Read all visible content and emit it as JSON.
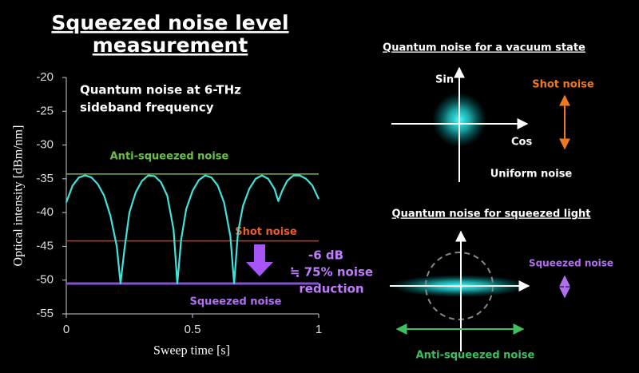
{
  "chart_data": {
    "type": "line",
    "title_lines": [
      "Squeezed  noise level",
      "measurement"
    ],
    "x_label": "Sweep time [s]",
    "y_label": "Optical intensity [dBm/nm]",
    "xlim": [
      0,
      1
    ],
    "xticks": [
      0,
      0.5,
      1
    ],
    "ylim": [
      -55,
      -20
    ],
    "yticks": [
      -20,
      -25,
      -30,
      -35,
      -40,
      -45,
      -50,
      -55
    ],
    "series": [
      {
        "color": "#3fe3dc",
        "x": [
          0,
          0.025,
          0.05,
          0.075,
          0.1,
          0.125,
          0.15,
          0.175,
          0.2,
          0.215,
          0.23,
          0.25,
          0.275,
          0.3,
          0.325,
          0.35,
          0.375,
          0.4,
          0.425,
          0.44,
          0.455,
          0.475,
          0.5,
          0.525,
          0.55,
          0.575,
          0.6,
          0.625,
          0.65,
          0.665,
          0.68,
          0.7,
          0.725,
          0.75,
          0.775,
          0.8,
          0.825,
          0.84,
          0.855,
          0.875,
          0.9,
          0.925,
          0.95,
          0.975,
          1
        ],
        "values": [
          -38.5,
          -36,
          -34.8,
          -34.5,
          -34.8,
          -35.8,
          -37.5,
          -40.5,
          -45,
          -50.5,
          -45.5,
          -40,
          -37,
          -35.3,
          -34.5,
          -34.6,
          -35.5,
          -37.5,
          -42.5,
          -50.5,
          -44,
          -39.5,
          -36.8,
          -35.2,
          -34.5,
          -34.8,
          -36,
          -38.5,
          -43.5,
          -50.5,
          -43,
          -39,
          -36.5,
          -35,
          -34.5,
          -35,
          -36.5,
          -38.3,
          -36.8,
          -35.3,
          -34.5,
          -34.5,
          -35,
          -36,
          -38
        ]
      }
    ],
    "reference_lines": [
      {
        "name": "Anti-squeezed noise",
        "value": -34.3,
        "color": "#7cb342"
      },
      {
        "name": "Shot noise",
        "value": -44.2,
        "color": "#c0392b"
      },
      {
        "name": "Squeezed noise",
        "value": -50.5,
        "color": "#8a4fd8"
      }
    ],
    "annotation_lines": [
      "Quantum noise at 6-THz",
      "sideband frequency"
    ],
    "reduction_lines": [
      "-6 dB",
      "≒ 75% noise",
      "reduction"
    ]
  },
  "diagrams": {
    "vacuum": {
      "title": "Quantum noise for a vacuum state",
      "y_axis": "Sin",
      "x_axis": "Cos",
      "noise": "Shot noise",
      "caption": "Uniform noise"
    },
    "squeezed": {
      "title": "Quantum noise for  squeezed light",
      "noise": "Squeezed noise",
      "anti_noise": "Anti-squeezed noise"
    }
  }
}
